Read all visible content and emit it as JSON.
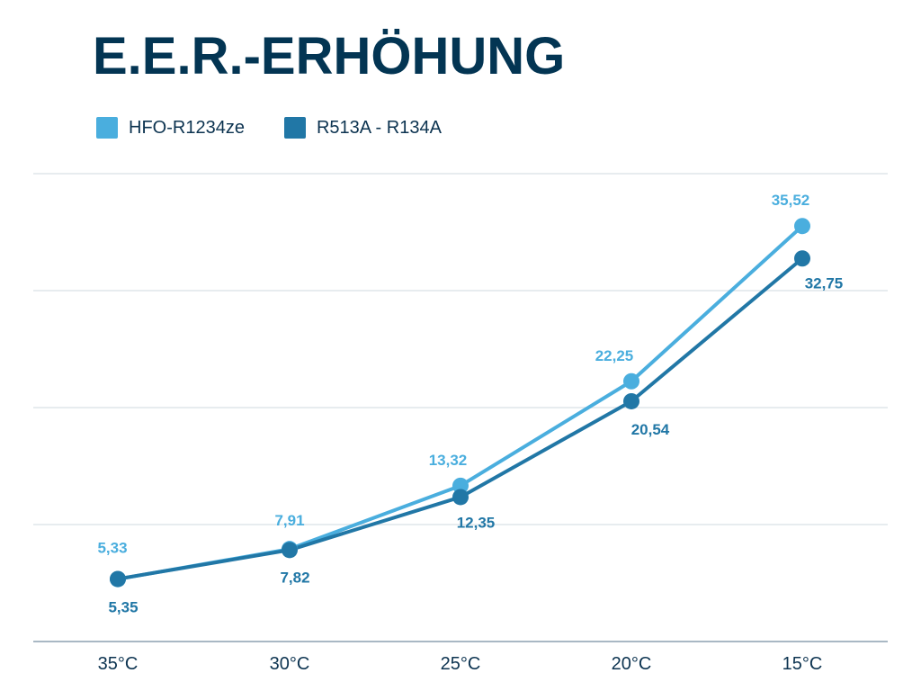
{
  "title": "E.E.R.-ERHÖHUNG",
  "legend": [
    {
      "label": "HFO-R1234ze",
      "color": "#4aaede"
    },
    {
      "label": "R513A - R134A",
      "color": "#2177a6"
    }
  ],
  "chart_data": {
    "type": "line",
    "title": "E.E.R.-ERHÖHUNG",
    "xlabel": "",
    "ylabel": "",
    "categories": [
      "35°C",
      "30°C",
      "25°C",
      "20°C",
      "15°C"
    ],
    "series": [
      {
        "name": "HFO-R1234ze",
        "color": "#4aaede",
        "values": [
          5.33,
          7.91,
          13.32,
          22.25,
          35.52
        ],
        "labels": [
          "5,33",
          "7,91",
          "13,32",
          "22,25",
          "35,52"
        ]
      },
      {
        "name": "R513A - R134A",
        "color": "#2177a6",
        "values": [
          5.35,
          7.82,
          12.35,
          20.54,
          32.75
        ],
        "labels": [
          "5,35",
          "7,82",
          "12,35",
          "20,54",
          "32,75"
        ]
      }
    ],
    "ylim": [
      0,
      40
    ],
    "gridlines": [
      0,
      10,
      20,
      30,
      40
    ],
    "grid": true,
    "legend_position": "top-left"
  }
}
